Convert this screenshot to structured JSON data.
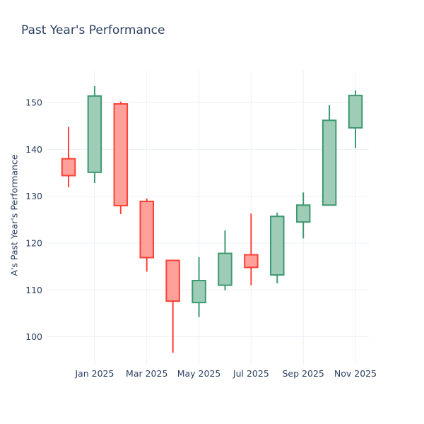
{
  "header": {
    "title": "Past Year's Performance"
  },
  "chart_data": {
    "type": "candlestick",
    "title": "Past Year's Performance",
    "xlabel": "",
    "ylabel": "A's Past Year's Performance",
    "x": [
      "Dec 2024",
      "Jan 2025",
      "Feb 2025",
      "Mar 2025",
      "Apr 2025",
      "May 2025",
      "Jun 2025",
      "Jul 2025",
      "Aug 2025",
      "Sep 2025",
      "Oct 2025",
      "Nov 2025"
    ],
    "ohlc": [
      {
        "open": 138.0,
        "high": 144.8,
        "low": 131.9,
        "close": 134.4
      },
      {
        "open": 135.1,
        "high": 153.5,
        "low": 132.8,
        "close": 151.4
      },
      {
        "open": 149.7,
        "high": 150.2,
        "low": 126.2,
        "close": 128.0
      },
      {
        "open": 128.9,
        "high": 129.5,
        "low": 113.9,
        "close": 116.9
      },
      {
        "open": 116.3,
        "high": 116.3,
        "low": 96.6,
        "close": 107.6
      },
      {
        "open": 107.3,
        "high": 117.0,
        "low": 104.2,
        "close": 112.0
      },
      {
        "open": 111.0,
        "high": 122.7,
        "low": 109.9,
        "close": 117.8
      },
      {
        "open": 117.5,
        "high": 126.3,
        "low": 111.0,
        "close": 114.8
      },
      {
        "open": 113.2,
        "high": 126.5,
        "low": 111.4,
        "close": 125.7
      },
      {
        "open": 124.5,
        "high": 130.8,
        "low": 121.0,
        "close": 128.1
      },
      {
        "open": 128.1,
        "high": 149.4,
        "low": 128.1,
        "close": 146.2
      },
      {
        "open": 144.6,
        "high": 152.6,
        "low": 140.3,
        "close": 151.5
      }
    ],
    "y_ticks": [
      100,
      110,
      120,
      130,
      140,
      150
    ],
    "x_ticks": [
      {
        "label": "Jan 2025",
        "index": 1
      },
      {
        "label": "Mar 2025",
        "index": 3
      },
      {
        "label": "May 2025",
        "index": 5
      },
      {
        "label": "Jul 2025",
        "index": 7
      },
      {
        "label": "Sep 2025",
        "index": 9
      },
      {
        "label": "Nov 2025",
        "index": 11
      }
    ],
    "ylim": [
      93.9,
      156.8
    ],
    "grid": true,
    "legend": "none",
    "colors": {
      "increasing_line": "#3D9970",
      "increasing_fill": "#9ECCB7",
      "decreasing_line": "#FF4136",
      "decreasing_fill": "#FFA09A",
      "grid": "#EBF0F8",
      "text": "#2A3F5F",
      "background": "#FFFFFF"
    }
  }
}
